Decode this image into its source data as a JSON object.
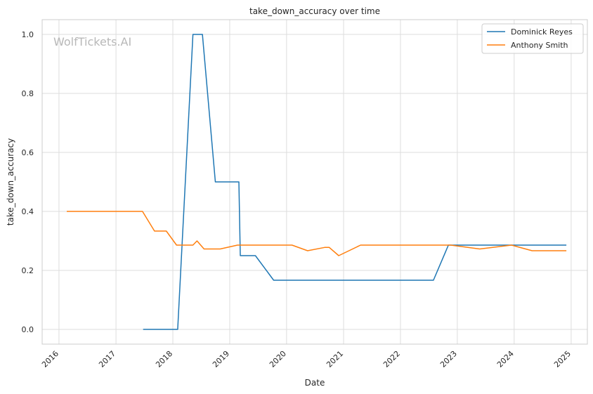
{
  "chart_data": {
    "type": "line",
    "title": "take_down_accuracy over time",
    "xlabel": "Date",
    "ylabel": "take_down_accuracy",
    "watermark": "WolfTickets.AI",
    "x_ticks": [
      "2016",
      "2017",
      "2018",
      "2019",
      "2020",
      "2021",
      "2022",
      "2023",
      "2024",
      "2025"
    ],
    "y_ticks": [
      "0.0",
      "0.2",
      "0.4",
      "0.6",
      "0.8",
      "1.0"
    ],
    "xlim": [
      "2015-09-15",
      "2025-04-15"
    ],
    "ylim": [
      -0.05,
      1.05
    ],
    "grid": true,
    "legend_position": "top-right",
    "colors": {
      "Dominick Reyes": "#1f77b4",
      "Anthony Smith": "#ff7f0e"
    },
    "series": [
      {
        "name": "Dominick Reyes",
        "color": "#1f77b4",
        "points": [
          [
            "2017-06-24",
            0.0
          ],
          [
            "2018-02-01",
            0.0
          ],
          [
            "2018-05-10",
            1.0
          ],
          [
            "2018-07-10",
            1.0
          ],
          [
            "2018-10-01",
            0.5
          ],
          [
            "2019-03-01",
            0.5
          ],
          [
            "2019-03-10",
            0.25
          ],
          [
            "2019-06-15",
            0.25
          ],
          [
            "2019-10-10",
            0.1667
          ],
          [
            "2022-08-01",
            0.1667
          ],
          [
            "2022-11-05",
            0.2857
          ],
          [
            "2024-12-01",
            0.2857
          ]
        ]
      },
      {
        "name": "Anthony Smith",
        "color": "#ff7f0e",
        "points": [
          [
            "2016-02-20",
            0.4
          ],
          [
            "2017-06-20",
            0.4
          ],
          [
            "2017-09-05",
            0.3333
          ],
          [
            "2017-11-20",
            0.3333
          ],
          [
            "2018-01-25",
            0.2857
          ],
          [
            "2018-05-10",
            0.2857
          ],
          [
            "2018-06-05",
            0.3
          ],
          [
            "2018-07-20",
            0.2727
          ],
          [
            "2018-11-01",
            0.2727
          ],
          [
            "2019-02-20",
            0.2857
          ],
          [
            "2020-02-05",
            0.2857
          ],
          [
            "2020-05-15",
            0.2667
          ],
          [
            "2020-09-01",
            0.2778
          ],
          [
            "2020-10-01",
            0.2778
          ],
          [
            "2020-12-01",
            0.25
          ],
          [
            "2021-04-20",
            0.2857
          ],
          [
            "2022-11-20",
            0.2857
          ],
          [
            "2023-05-25",
            0.2727
          ],
          [
            "2023-12-15",
            0.2857
          ],
          [
            "2024-04-25",
            0.2667
          ],
          [
            "2024-12-01",
            0.2667
          ]
        ]
      }
    ]
  }
}
